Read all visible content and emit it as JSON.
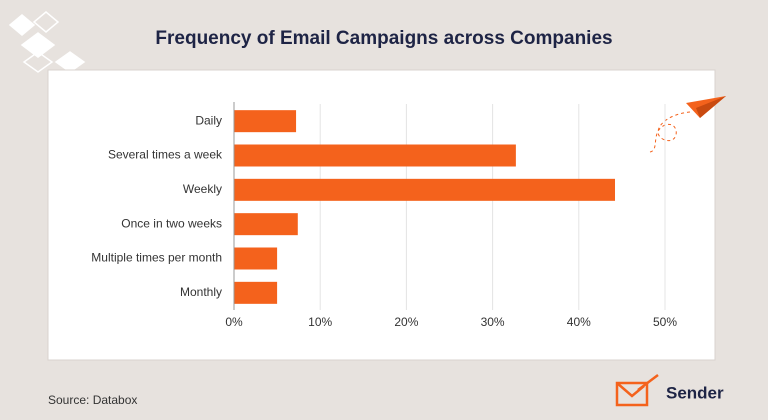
{
  "chart_data": {
    "type": "bar",
    "orientation": "horizontal",
    "title": "Frequency of Email Campaigns across Companies",
    "categories": [
      "Daily",
      "Several times a week",
      "Weekly",
      "Once in two weeks",
      "Multiple times per month",
      "Monthly"
    ],
    "values": [
      7.2,
      32.7,
      44.2,
      7.4,
      5,
      5
    ],
    "color": "#f4621c",
    "xlim": [
      0,
      50
    ],
    "xticks": [
      {
        "value": 0,
        "label": "0%"
      },
      {
        "value": 10,
        "label": "10%"
      },
      {
        "value": 20,
        "label": "20%"
      },
      {
        "value": 30,
        "label": "30%"
      },
      {
        "value": 40,
        "label": "40%"
      },
      {
        "value": 50,
        "label": "50%"
      }
    ],
    "grid": true,
    "source": "Source: Databox",
    "brand": "Sender"
  }
}
